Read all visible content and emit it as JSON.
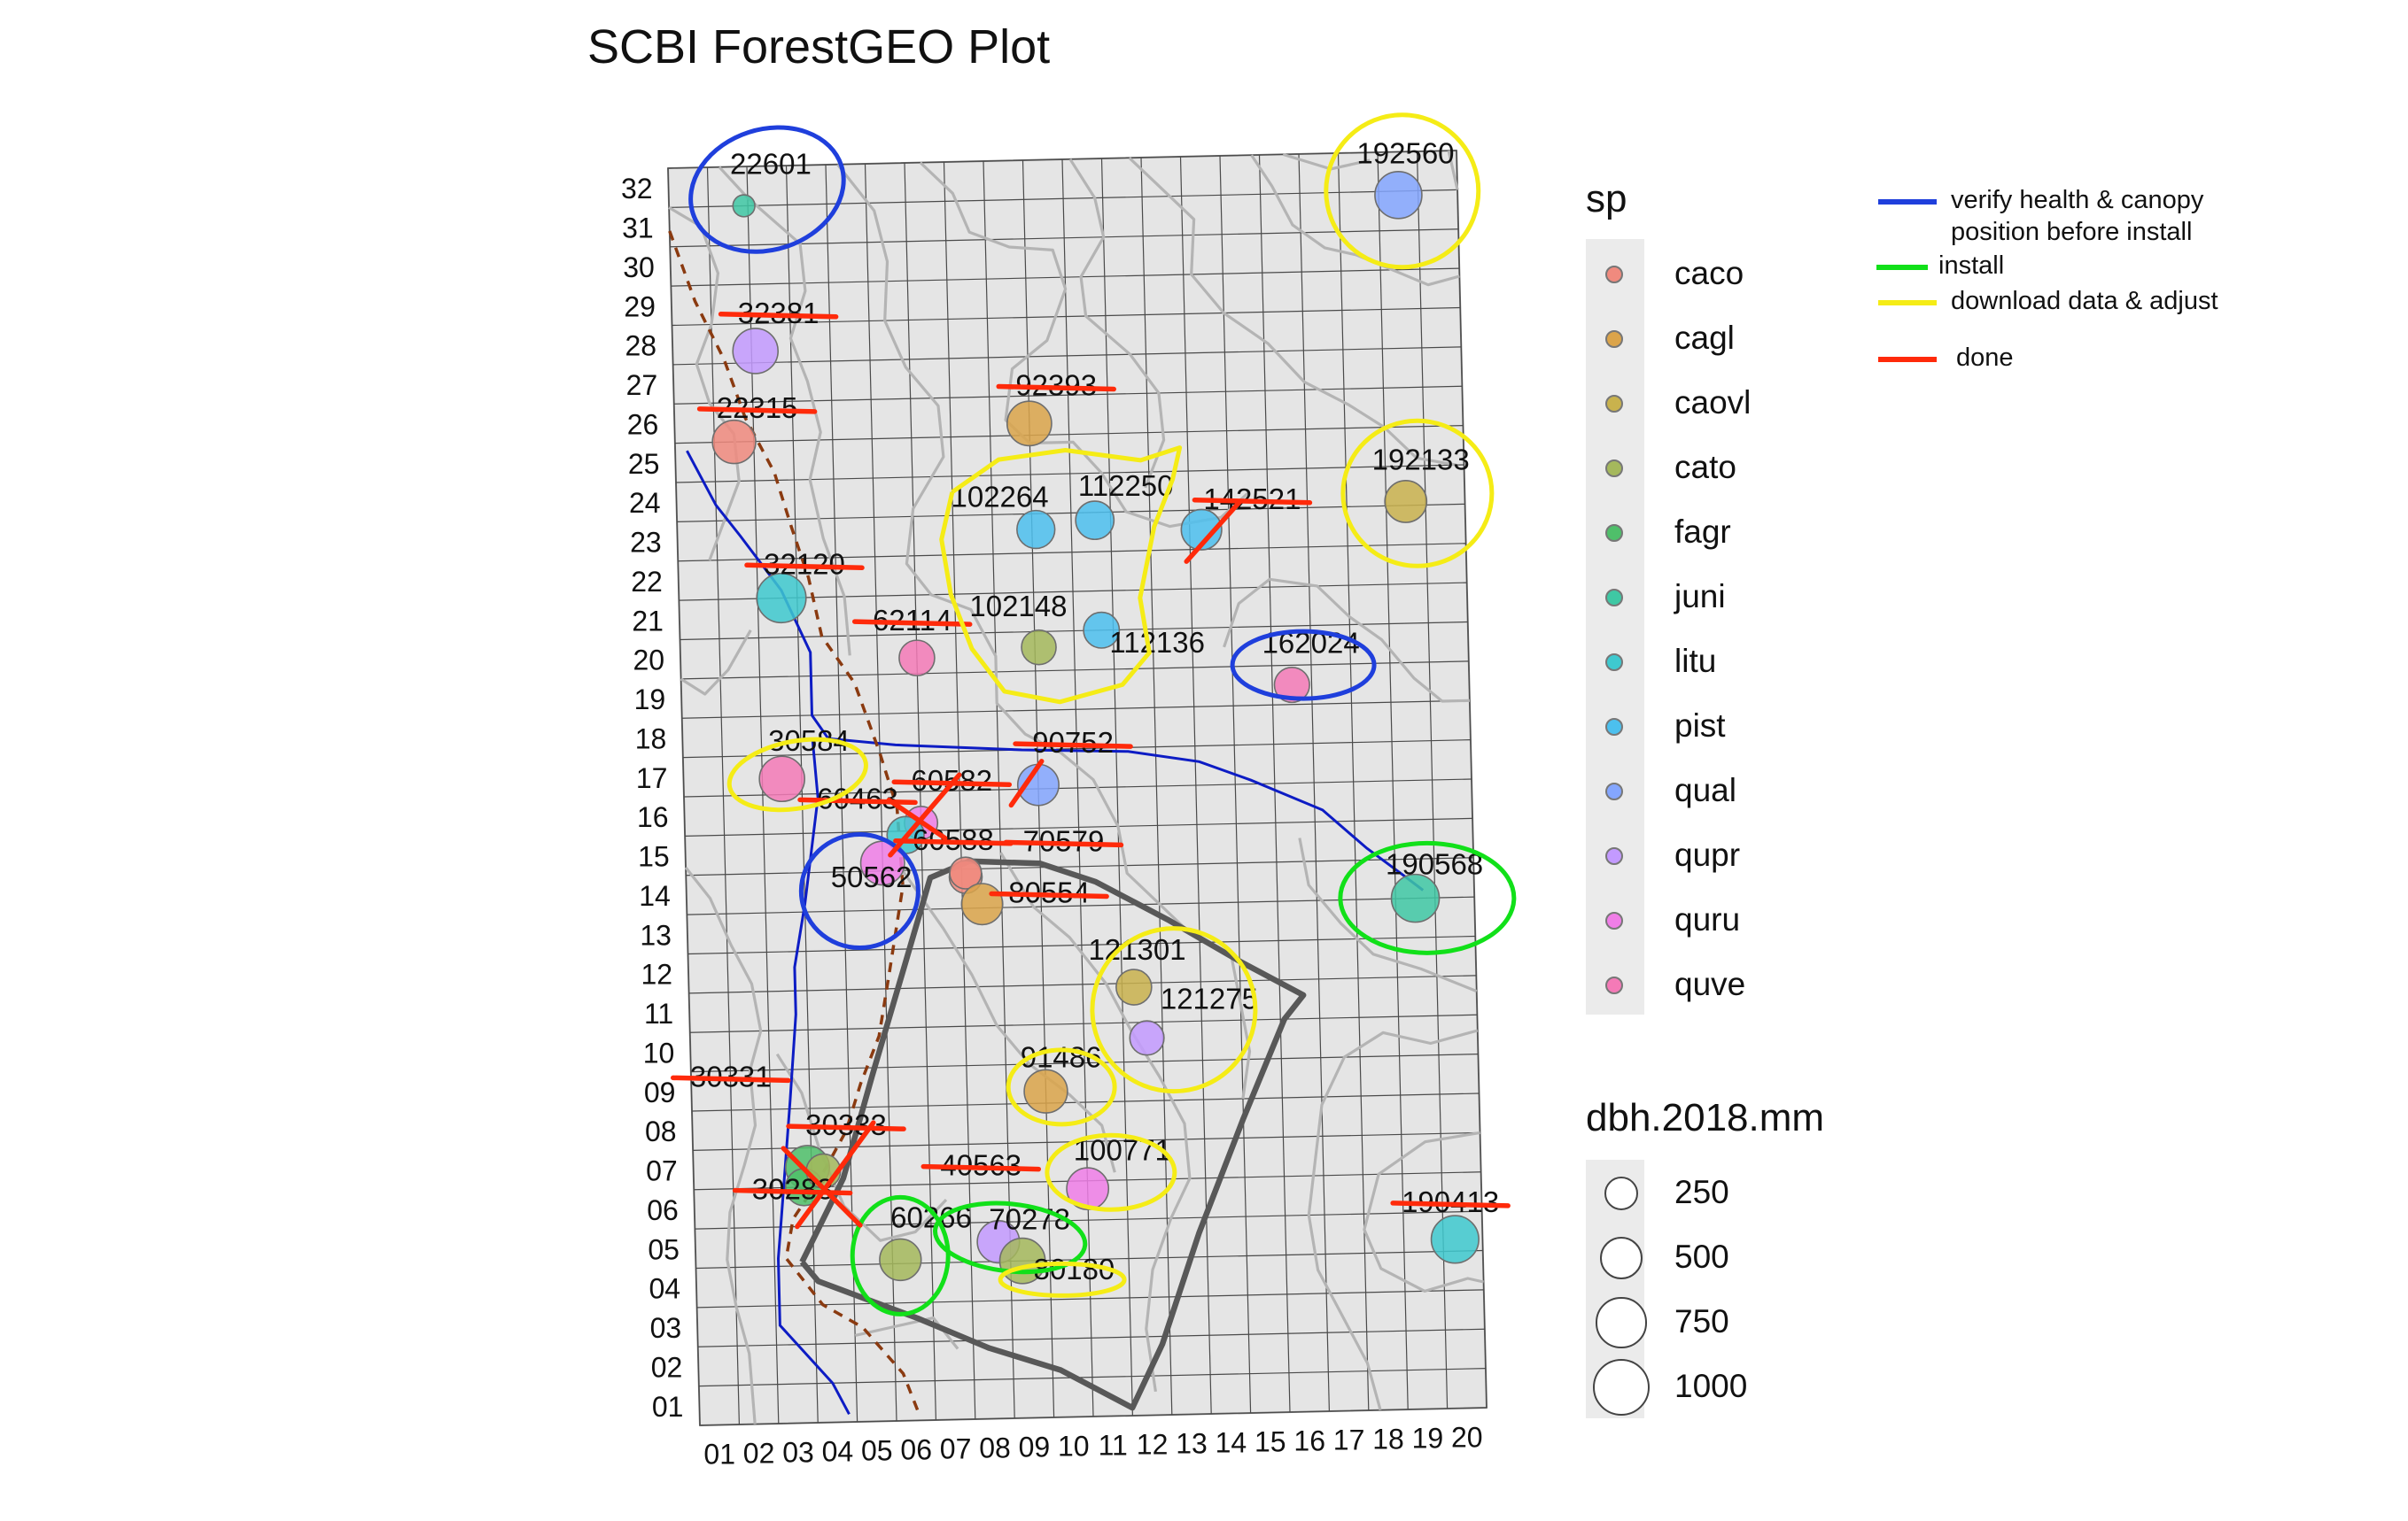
{
  "title": "SCBI ForestGEO Plot",
  "grid": {
    "x_labels": [
      "01",
      "02",
      "03",
      "04",
      "05",
      "06",
      "07",
      "08",
      "09",
      "10",
      "11",
      "12",
      "13",
      "14",
      "15",
      "16",
      "17",
      "18",
      "19",
      "20"
    ],
    "y_labels": [
      "32",
      "31",
      "30",
      "29",
      "28",
      "27",
      "26",
      "25",
      "24",
      "23",
      "22",
      "21",
      "20",
      "19",
      "18",
      "17",
      "16",
      "15",
      "14",
      "13",
      "12",
      "11",
      "10",
      "09",
      "08",
      "07",
      "06",
      "05",
      "04",
      "03",
      "02",
      "01"
    ]
  },
  "species_legend": {
    "title": "sp",
    "items": [
      {
        "label": "caco",
        "color": "#f08a7e"
      },
      {
        "label": "cagl",
        "color": "#dba44a"
      },
      {
        "label": "caovl",
        "color": "#c9b24d"
      },
      {
        "label": "cato",
        "color": "#a5b85c"
      },
      {
        "label": "fagr",
        "color": "#4fbf6a"
      },
      {
        "label": "juni",
        "color": "#3fc8a4"
      },
      {
        "label": "litu",
        "color": "#3ec9cf"
      },
      {
        "label": "pist",
        "color": "#4cc0ee"
      },
      {
        "label": "qual",
        "color": "#84a6ff"
      },
      {
        "label": "qupr",
        "color": "#c39aff"
      },
      {
        "label": "quru",
        "color": "#f07ee7"
      },
      {
        "label": "quve",
        "color": "#f47ab7"
      }
    ]
  },
  "size_legend": {
    "title": "dbh.2018.mm",
    "items": [
      {
        "label": "250",
        "value": 250
      },
      {
        "label": "500",
        "value": 500
      },
      {
        "label": "750",
        "value": 750
      },
      {
        "label": "1000",
        "value": 1000
      }
    ]
  },
  "annotation_legend": {
    "items": [
      {
        "label": "verify health & canopy",
        "label2": "position before install",
        "color": "#1f3fdc"
      },
      {
        "label": "install",
        "color": "#11e019"
      },
      {
        "label": "download data & adjust",
        "color": "#f5ec16"
      },
      {
        "label": "done",
        "color": "#ff2a0a"
      }
    ]
  },
  "trees": [
    {
      "id": "22601",
      "sp": "juni",
      "gx": 1.9,
      "gy": 31.0,
      "dbh": 60
    },
    {
      "id": "192560",
      "sp": "qual",
      "gx": 18.5,
      "gy": 30.9,
      "dbh": 620
    },
    {
      "id": "32381",
      "sp": "qupr",
      "gx": 2.1,
      "gy": 27.3,
      "dbh": 560
    },
    {
      "id": "22315",
      "sp": "caco",
      "gx": 1.5,
      "gy": 25.0,
      "dbh": 500
    },
    {
      "id": "92393",
      "sp": "cagl",
      "gx": 9.0,
      "gy": 25.3,
      "dbh": 540
    },
    {
      "id": "102264",
      "sp": "pist",
      "gx": 9.1,
      "gy": 22.6,
      "dbh": 350
    },
    {
      "id": "112250",
      "sp": "pist",
      "gx": 10.6,
      "gy": 22.8,
      "dbh": 360
    },
    {
      "id": "142521",
      "sp": "pist",
      "gx": 13.3,
      "gy": 22.5,
      "dbh": 420
    },
    {
      "id": "192133",
      "sp": "caovl",
      "gx": 18.5,
      "gy": 23.1,
      "dbh": 460
    },
    {
      "id": "32120",
      "sp": "litu",
      "gx": 2.6,
      "gy": 21.0,
      "dbh": 700
    },
    {
      "id": "62114",
      "sp": "quve",
      "gx": 6.0,
      "gy": 19.4,
      "dbh": 290
    },
    {
      "id": "102148",
      "sp": "cato",
      "gx": 9.1,
      "gy": 19.6,
      "dbh": 270
    },
    {
      "id": "112136",
      "sp": "pist",
      "gx": 10.7,
      "gy": 20.0,
      "dbh": 300
    },
    {
      "id": "162024",
      "sp": "quve",
      "gx": 15.5,
      "gy": 18.5,
      "dbh": 280
    },
    {
      "id": "30584",
      "sp": "quve",
      "gx": 2.5,
      "gy": 16.4,
      "dbh": 560
    },
    {
      "id": "90752",
      "sp": "qual",
      "gx": 9.0,
      "gy": 16.1,
      "dbh": 440
    },
    {
      "id": "60582",
      "sp": "quru",
      "gx": 6.0,
      "gy": 15.2,
      "dbh": 240
    },
    {
      "id": "60463",
      "sp": "litu",
      "gx": 5.6,
      "gy": 14.9,
      "dbh": 330
    },
    {
      "id": "50562",
      "sp": "quru",
      "gx": 5.0,
      "gy": 14.2,
      "dbh": 520
    },
    {
      "id": "60588",
      "sp": "caco",
      "gx": 7.1,
      "gy": 13.8,
      "dbh": 230
    },
    {
      "id": "70579",
      "sp": "caco",
      "gx": 7.1,
      "gy": 13.9,
      "dbh": 210
    },
    {
      "id": "80554",
      "sp": "cagl",
      "gx": 7.5,
      "gy": 13.1,
      "dbh": 440
    },
    {
      "id": "190568",
      "sp": "juni",
      "gx": 18.5,
      "gy": 13.0,
      "dbh": 650
    },
    {
      "id": "121301",
      "sp": "caovl",
      "gx": 11.3,
      "gy": 10.9,
      "dbh": 290
    },
    {
      "id": "121275",
      "sp": "qupr",
      "gx": 11.6,
      "gy": 9.6,
      "dbh": 260
    },
    {
      "id": "91486",
      "sp": "cagl",
      "gx": 9.0,
      "gy": 8.3,
      "dbh": 500
    },
    {
      "id": "30333",
      "sp": "fagr",
      "gx": 2.9,
      "gy": 6.5,
      "dbh": 520
    },
    {
      "id": "30283",
      "sp": "fagr",
      "gx": 2.8,
      "gy": 6.0,
      "dbh": 330
    },
    {
      "id": "40563",
      "sp": "cato",
      "gx": 3.3,
      "gy": 6.4,
      "dbh": 260
    },
    {
      "id": "100771",
      "sp": "quru",
      "gx": 10.0,
      "gy": 5.8,
      "dbh": 460
    },
    {
      "id": "190413",
      "sp": "litu",
      "gx": 19.3,
      "gy": 4.3,
      "dbh": 640
    },
    {
      "id": "60266",
      "sp": "cato",
      "gx": 5.2,
      "gy": 4.1,
      "dbh": 450
    },
    {
      "id": "70278",
      "sp": "qupr",
      "gx": 7.7,
      "gy": 4.5,
      "dbh": 470
    },
    {
      "id": "80180",
      "sp": "cato",
      "gx": 8.3,
      "gy": 4.0,
      "dbh": 570
    }
  ],
  "labels": [
    {
      "text": "22601",
      "gx": 2.6,
      "gy": 31.8,
      "strike": false
    },
    {
      "text": "192560",
      "gx": 18.7,
      "gy": 31.7,
      "strike": false
    },
    {
      "text": "32381",
      "gx": 2.7,
      "gy": 28.0,
      "strike": true
    },
    {
      "text": "22315",
      "gx": 2.1,
      "gy": 25.6,
      "strike": true
    },
    {
      "text": "92393",
      "gx": 9.7,
      "gy": 26.0,
      "strike": true
    },
    {
      "text": "102264",
      "gx": 8.2,
      "gy": 23.2,
      "strike": false
    },
    {
      "text": "112250",
      "gx": 11.4,
      "gy": 23.4,
      "strike": false
    },
    {
      "text": "142521",
      "gx": 14.6,
      "gy": 23.0,
      "strike": true
    },
    {
      "text": "192133",
      "gx": 18.9,
      "gy": 23.9,
      "strike": false
    },
    {
      "text": "32120",
      "gx": 3.2,
      "gy": 21.6,
      "strike": true
    },
    {
      "text": "62114",
      "gx": 5.9,
      "gy": 20.1,
      "strike": true
    },
    {
      "text": "102148",
      "gx": 8.6,
      "gy": 20.4,
      "strike": false
    },
    {
      "text": "112136",
      "gx": 12.1,
      "gy": 19.4,
      "strike": false
    },
    {
      "text": "162024",
      "gx": 16.0,
      "gy": 19.3,
      "strike": false
    },
    {
      "text": "30584",
      "gx": 3.2,
      "gy": 17.1,
      "strike": false
    },
    {
      "text": "90752",
      "gx": 9.9,
      "gy": 16.9,
      "strike": true
    },
    {
      "text": "60582",
      "gx": 6.8,
      "gy": 16.0,
      "strike": true
    },
    {
      "text": "60463",
      "gx": 4.4,
      "gy": 15.6,
      "strike": true
    },
    {
      "text": "60588",
      "gx": 6.8,
      "gy": 14.5,
      "strike": true
    },
    {
      "text": "70579",
      "gx": 9.6,
      "gy": 14.4,
      "strike": true
    },
    {
      "text": "50562",
      "gx": 4.7,
      "gy": 13.6,
      "strike": false
    },
    {
      "text": "80554",
      "gx": 9.2,
      "gy": 13.1,
      "strike": true
    },
    {
      "text": "190568",
      "gx": 19.0,
      "gy": 13.6,
      "strike": false
    },
    {
      "text": "121301",
      "gx": 11.4,
      "gy": 11.6,
      "strike": false
    },
    {
      "text": "121275",
      "gx": 13.2,
      "gy": 10.3,
      "strike": false
    },
    {
      "text": "91486",
      "gx": 9.4,
      "gy": 8.9,
      "strike": false
    },
    {
      "text": "30331",
      "gx": 1.0,
      "gy": 8.6,
      "strike": true
    },
    {
      "text": "30333",
      "gx": 3.9,
      "gy": 7.3,
      "strike": true
    },
    {
      "text": "40563",
      "gx": 7.3,
      "gy": 6.2,
      "strike": true
    },
    {
      "text": "30283",
      "gx": 2.5,
      "gy": 5.7,
      "strike": true
    },
    {
      "text": "100771",
      "gx": 10.9,
      "gy": 6.5,
      "strike": false
    },
    {
      "text": "190413",
      "gx": 19.2,
      "gy": 5.0,
      "strike": true
    },
    {
      "text": "60266",
      "gx": 6.0,
      "gy": 4.9,
      "strike": false
    },
    {
      "text": "70278",
      "gx": 8.5,
      "gy": 4.8,
      "strike": false
    },
    {
      "text": "80180",
      "gx": 9.6,
      "gy": 3.5,
      "strike": false
    }
  ]
}
